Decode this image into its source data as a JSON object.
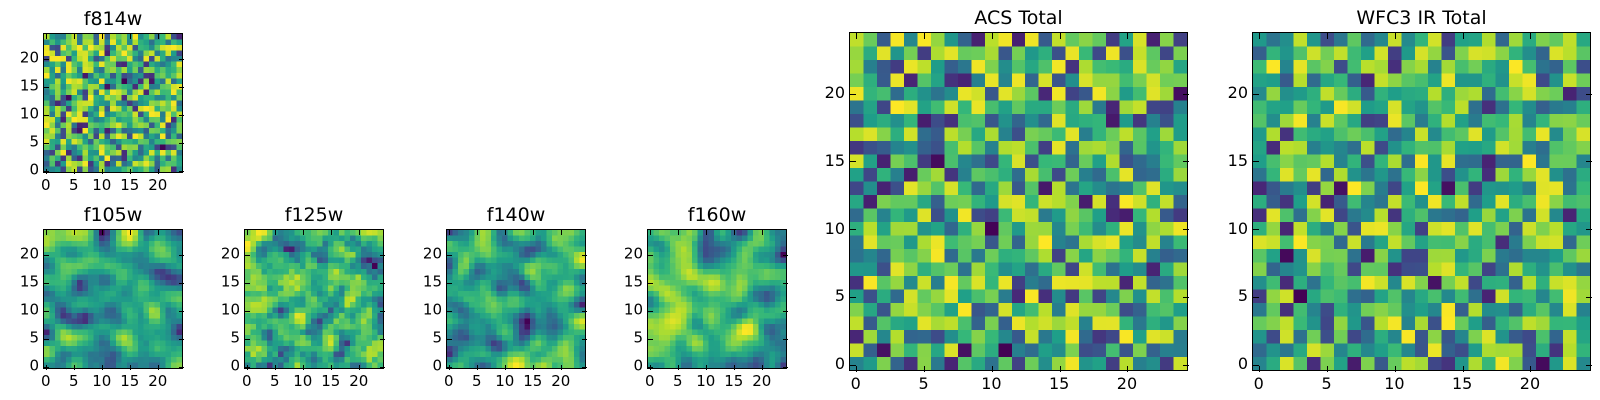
{
  "chart_data": [
    {
      "id": "f814w",
      "type": "heatmap",
      "title": "f814w",
      "grid_size": 25,
      "colormap": "viridis",
      "seed": 11,
      "smooth": 0,
      "xlim": [
        -0.5,
        24.5
      ],
      "ylim": [
        -0.5,
        24.5
      ],
      "xticks": [
        0,
        5,
        10,
        15,
        20
      ],
      "yticks": [
        0,
        5,
        10,
        15,
        20
      ]
    },
    {
      "id": "f105w",
      "type": "heatmap",
      "title": "f105w",
      "grid_size": 25,
      "colormap": "viridis",
      "seed": 23,
      "smooth": 2,
      "xlim": [
        -0.5,
        24.5
      ],
      "ylim": [
        -0.5,
        24.5
      ],
      "xticks": [
        0,
        5,
        10,
        15,
        20
      ],
      "yticks": [
        0,
        5,
        10,
        15,
        20
      ]
    },
    {
      "id": "f125w",
      "type": "heatmap",
      "title": "f125w",
      "grid_size": 25,
      "colormap": "viridis",
      "seed": 37,
      "smooth": 1,
      "xlim": [
        -0.5,
        24.5
      ],
      "ylim": [
        -0.5,
        24.5
      ],
      "xticks": [
        0,
        5,
        10,
        15,
        20
      ],
      "yticks": [
        0,
        5,
        10,
        15,
        20
      ]
    },
    {
      "id": "f140w",
      "type": "heatmap",
      "title": "f140w",
      "grid_size": 25,
      "colormap": "viridis",
      "seed": 41,
      "smooth": 2,
      "xlim": [
        -0.5,
        24.5
      ],
      "ylim": [
        -0.5,
        24.5
      ],
      "xticks": [
        0,
        5,
        10,
        15,
        20
      ],
      "yticks": [
        0,
        5,
        10,
        15,
        20
      ]
    },
    {
      "id": "f160w",
      "type": "heatmap",
      "title": "f160w",
      "grid_size": 25,
      "colormap": "viridis",
      "seed": 53,
      "smooth": 2,
      "xlim": [
        -0.5,
        24.5
      ],
      "ylim": [
        -0.5,
        24.5
      ],
      "xticks": [
        0,
        5,
        10,
        15,
        20
      ],
      "yticks": [
        0,
        5,
        10,
        15,
        20
      ]
    },
    {
      "id": "acs-total",
      "type": "heatmap",
      "title": "ACS Total",
      "grid_size": 25,
      "colormap": "viridis",
      "seed": 67,
      "smooth": 0,
      "xlim": [
        -0.5,
        24.5
      ],
      "ylim": [
        -0.5,
        24.5
      ],
      "xticks": [
        0,
        5,
        10,
        15,
        20
      ],
      "yticks": [
        0,
        5,
        10,
        15,
        20
      ]
    },
    {
      "id": "wfc3-ir-total",
      "type": "heatmap",
      "title": "WFC3 IR Total",
      "grid_size": 25,
      "colormap": "viridis",
      "seed": 79,
      "smooth": 0,
      "xlim": [
        -0.5,
        24.5
      ],
      "ylim": [
        -0.5,
        24.5
      ],
      "xticks": [
        0,
        5,
        10,
        15,
        20
      ],
      "yticks": [
        0,
        5,
        10,
        15,
        20
      ]
    }
  ]
}
